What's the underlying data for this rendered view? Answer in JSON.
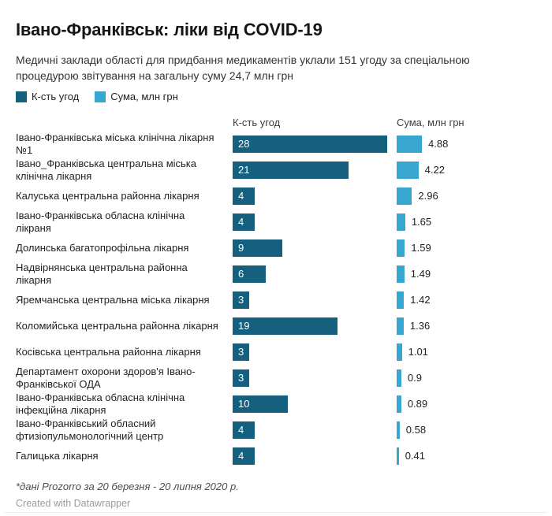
{
  "header": {
    "title": "Івано-Франківськ: ліки від COVID-19",
    "subtitle": "Медичні заклади області для придбання медикаментів уклали 151 угоду за спеціальною процедурою звітування на загальну суму 24,7 млн грн"
  },
  "legend": {
    "items": [
      {
        "label": "К-сть угод",
        "color": "#15607e"
      },
      {
        "label": "Сума, млн грн",
        "color": "#37a6d1"
      }
    ]
  },
  "columns": {
    "qty": "К-сть угод",
    "sum": "Сума, млн грн"
  },
  "footer": {
    "source": "*дані Prozorro за 20 березня - 20 липня 2020 р.",
    "credit": "Created with Datawrapper"
  },
  "chart_data": {
    "type": "bar",
    "orientation": "horizontal",
    "title": "Івано-Франківськ: ліки від COVID-19",
    "subtitle": "Медичні заклади області для придбання медикаментів уклали 151 угоду за спеціальною процедурою звітування на загальну суму 24,7 млн грн",
    "legend_position": "top",
    "grid": false,
    "value_labels": true,
    "categories": [
      "Івано-Франківська міська клінічна лікарня №1",
      "Івано_Франківська центральна міська клінічна лікарня",
      "Калуська центральна районна лікарня",
      "Івано-Франківська обласна клінічна лікраня",
      "Долинська багатопрофільна лікарня",
      "Надвірнянська центральна районна лікарня",
      "Яремчанська центральна міська лікарня",
      "Коломийська центральна районна лікарня",
      "Косівська центральна районна лікарня",
      "Департамент охорони здоров'я Івано-Франківської ОДА",
      "Івано-Франківська обласна клінічна інфекційна лікарня",
      "Івано-Франківський обласний фтизіопульмонологічний центр",
      "Галицька лікарня"
    ],
    "series": [
      {
        "name": "К-сть угод",
        "color": "#15607e",
        "axis_max": 28,
        "values": [
          28,
          21,
          4,
          4,
          9,
          6,
          3,
          19,
          3,
          3,
          10,
          4,
          4
        ]
      },
      {
        "name": "Сума, млн грн",
        "color": "#37a6d1",
        "axis_max": 4.88,
        "values": [
          4.88,
          4.22,
          2.96,
          1.65,
          1.59,
          1.49,
          1.42,
          1.36,
          1.01,
          0.9,
          0.89,
          0.58,
          0.41
        ]
      }
    ]
  }
}
